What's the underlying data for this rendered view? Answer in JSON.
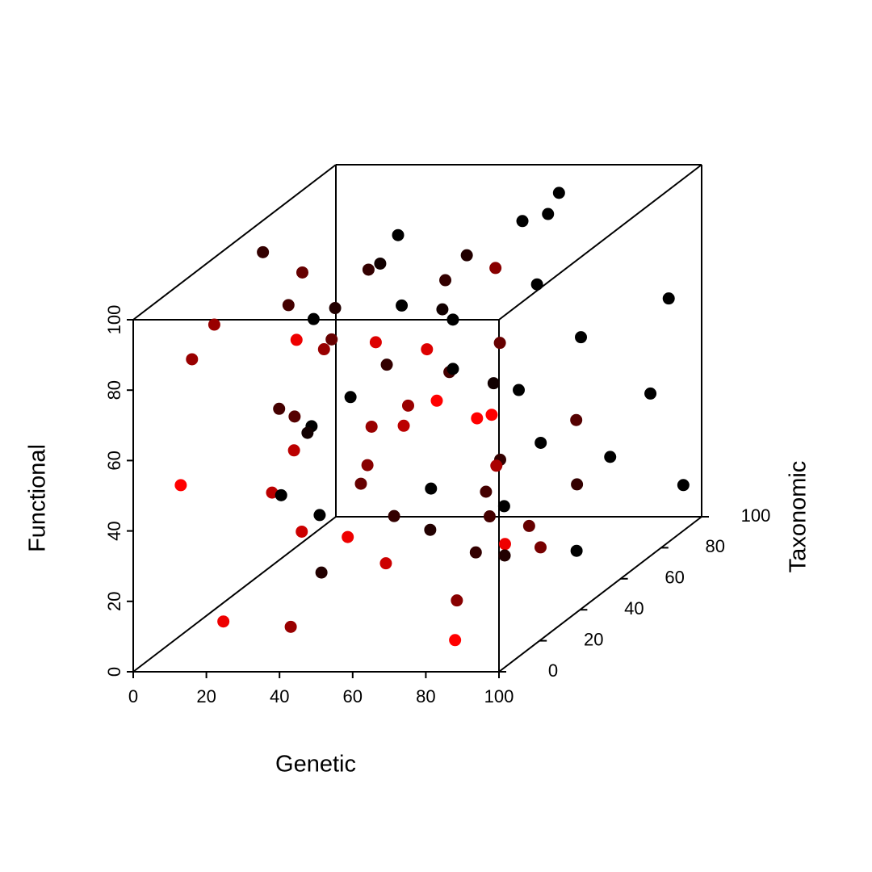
{
  "chart_data": {
    "type": "scatter3d",
    "xlabel": "Genetic",
    "ylabel": "Taxonomic",
    "zlabel": "Functional",
    "xlim": [
      0,
      100
    ],
    "ylim": [
      0,
      100
    ],
    "zlim": [
      0,
      100
    ],
    "xticks": [
      0,
      20,
      40,
      60,
      80,
      100
    ],
    "yticks": [
      0,
      20,
      40,
      60,
      80,
      100
    ],
    "zticks": [
      0,
      20,
      40,
      60,
      80,
      100
    ],
    "series": [
      {
        "x": [
          61,
          51,
          58,
          17,
          0,
          43,
          73,
          13,
          20,
          16,
          41,
          55,
          91,
          2,
          18,
          33,
          7,
          0,
          32,
          0,
          67,
          38,
          21,
          30,
          58,
          72,
          67,
          0,
          25,
          46,
          32,
          47,
          50,
          4,
          83,
          86,
          53,
          0,
          94,
          98,
          7,
          84,
          43,
          59,
          0,
          0,
          56,
          29,
          75,
          56,
          38,
          81,
          13,
          29,
          23,
          26,
          56,
          77,
          95,
          0,
          46,
          0,
          27,
          57,
          75,
          33,
          35,
          52,
          95,
          82,
          51,
          60,
          78,
          58,
          16,
          63,
          18,
          27,
          88
        ],
        "y": [
          100,
          100,
          100,
          100,
          64,
          87,
          47,
          60,
          80,
          93,
          80,
          100,
          100,
          73,
          100,
          93,
          87,
          89,
          100,
          40,
          100,
          12,
          60,
          40,
          15,
          15,
          60,
          29,
          80,
          73,
          100,
          93,
          100,
          100,
          0,
          100,
          40,
          72,
          0,
          0,
          67,
          67,
          40,
          27,
          88,
          86,
          100,
          27,
          100,
          80,
          47,
          33,
          0,
          60,
          27,
          100,
          73,
          80,
          100,
          73,
          100,
          92,
          80,
          73,
          60,
          87,
          20,
          12,
          12,
          53,
          77,
          75,
          78,
          20,
          64,
          46,
          12,
          29,
          0
        ],
        "z": [
          92,
          84,
          86,
          80,
          91,
          80,
          94,
          87,
          79,
          75,
          76,
          66,
          62,
          72,
          60,
          62,
          65,
          61,
          56,
          81,
          51,
          89,
          68,
          74,
          87,
          85,
          67,
          76,
          52,
          53,
          42,
          41,
          36,
          34,
          77,
          35,
          58,
          43,
          72,
          73,
          43,
          42,
          52,
          58,
          31,
          30,
          21,
          51,
          17,
          25,
          38,
          44,
          53,
          27,
          39,
          8,
          19,
          18,
          9,
          18,
          3,
          4,
          9,
          12,
          15,
          2,
          31,
          33,
          31,
          12,
          0,
          0,
          0,
          22,
          0,
          0,
          9,
          0,
          9
        ],
        "colors": [
          "#000000",
          "#000000",
          "#000000",
          "#000000",
          "#330000",
          "#220000",
          "#880000",
          "#660000",
          "#330000",
          "#110000",
          "#330000",
          "#000000",
          "#000000",
          "#440000",
          "#000000",
          "#110000",
          "#220000",
          "#000000",
          "#000000",
          "#990000",
          "#000000",
          "#ee0000",
          "#660000",
          "#990000",
          "#dd0000",
          "#dd0000",
          "#660000",
          "#990000",
          "#330000",
          "#440000",
          "#000000",
          "#110000",
          "#000000",
          "#000000",
          "#ff0000",
          "#000000",
          "#990000",
          "#440000",
          "#ff0000",
          "#ff0000",
          "#550000",
          "#550000",
          "#990000",
          "#bb0000",
          "#000000",
          "#110000",
          "#000000",
          "#bb0000",
          "#000000",
          "#330000",
          "#880000",
          "#aa0000",
          "#ff0000",
          "#660000",
          "#bb0000",
          "#000000",
          "#440000",
          "#330000",
          "#000000",
          "#000000",
          "#000000",
          "#000000",
          "#330000",
          "#440000",
          "#660000",
          "#220000",
          "#cc0000",
          "#ee0000",
          "#ee0000",
          "#770000",
          "#330000",
          "#220000",
          "#000000",
          "#cc0000",
          "#220000",
          "#880000",
          "#ee0000",
          "#990000",
          "#ff0000"
        ]
      }
    ]
  }
}
